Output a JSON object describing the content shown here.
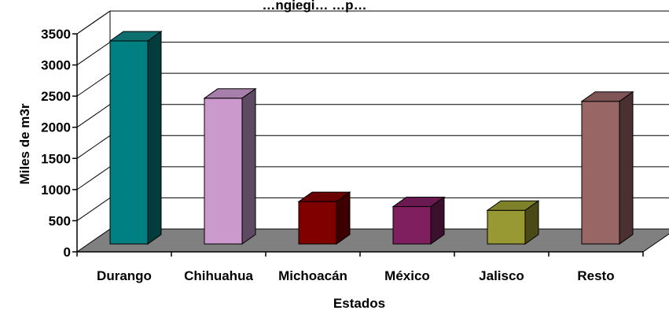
{
  "chart_data": {
    "type": "bar",
    "title": "…ngiegi… …p…",
    "xlabel": "Estados",
    "ylabel": "Miles de m3r",
    "ylim": [
      0,
      3500
    ],
    "yticks": [
      0,
      500,
      1000,
      1500,
      2000,
      2500,
      3000,
      3500
    ],
    "categories": [
      "Durango",
      "Chihuahua",
      "Michoacán",
      "México",
      "Jalisco",
      "Resto"
    ],
    "values": [
      3260,
      2340,
      680,
      600,
      540,
      2290
    ],
    "grid": true,
    "three_d": true,
    "colors": {
      "front": [
        "#008080",
        "#cc99cc",
        "#800000",
        "#7f1f5f",
        "#999933",
        "#996666"
      ],
      "top": [
        "#0d6f6f",
        "#a77fab",
        "#6b0000",
        "#6a1a50",
        "#7f802a",
        "#7f5555"
      ],
      "side": [
        "#033c3c",
        "#5e4a62",
        "#3d0000",
        "#3d0f2e",
        "#4a4a17",
        "#4a3030"
      ],
      "floor": "#808080",
      "grid": "#000000"
    }
  }
}
